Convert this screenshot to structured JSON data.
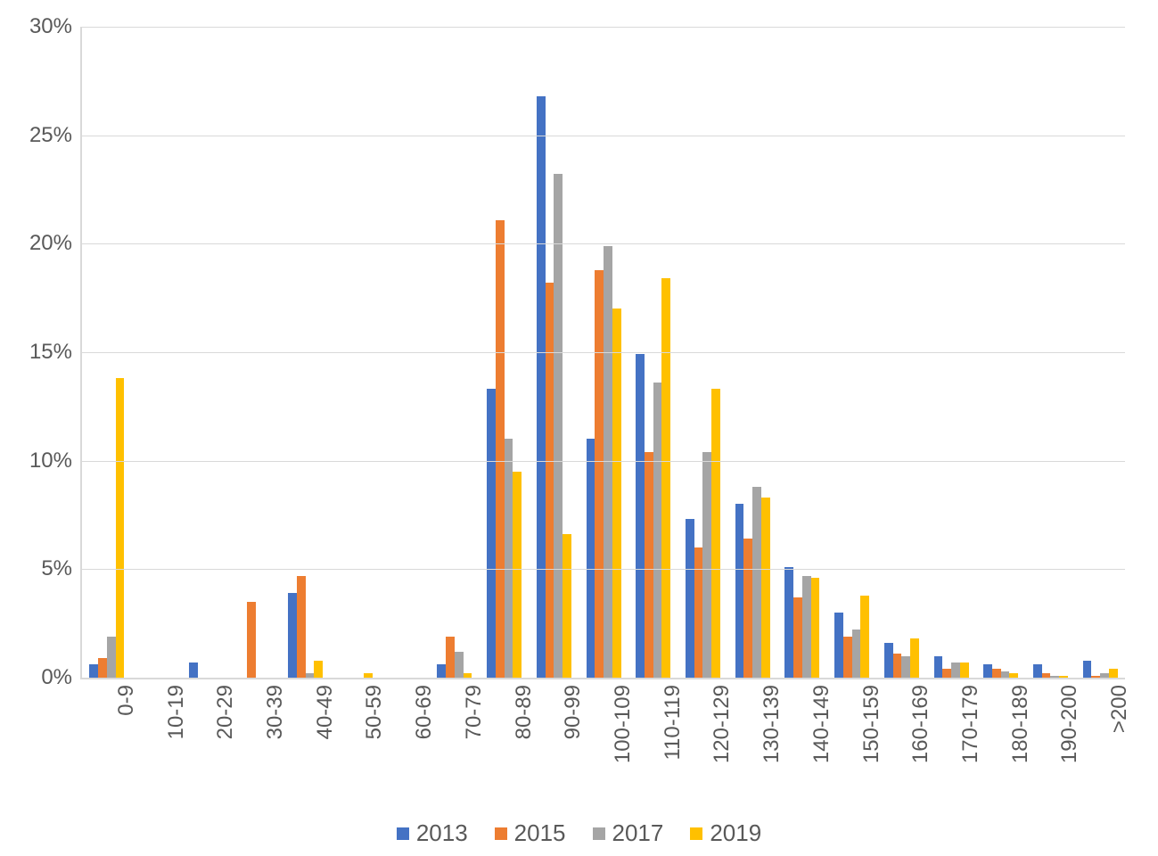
{
  "chart": {
    "type": "bar",
    "categories": [
      "0-9",
      "10-19",
      "20-29",
      "30-39",
      "40-49",
      "50-59",
      "60-69",
      "70-79",
      "80-89",
      "90-99",
      "100-109",
      "110-119",
      "120-129",
      "130-139",
      "140-149",
      "150-159",
      "160-169",
      "170-179",
      "180-189",
      "190-200",
      ">200"
    ],
    "series": [
      {
        "name": "2013",
        "color": "#4472c4",
        "values": [
          0.6,
          0,
          0.7,
          0,
          3.9,
          0,
          0,
          0.6,
          13.3,
          26.8,
          11.0,
          14.9,
          7.3,
          8.0,
          5.1,
          3.0,
          1.6,
          1.0,
          0.6,
          0.6,
          0.8
        ]
      },
      {
        "name": "2015",
        "color": "#ed7d31",
        "values": [
          0.9,
          0,
          0,
          3.5,
          4.7,
          0,
          0,
          1.9,
          21.1,
          18.2,
          18.8,
          10.4,
          6.0,
          6.4,
          3.7,
          1.9,
          1.1,
          0.4,
          0.4,
          0.2,
          0.1
        ]
      },
      {
        "name": "2017",
        "color": "#a5a5a5",
        "values": [
          1.9,
          0,
          0,
          0,
          0.2,
          0,
          0,
          1.2,
          11.0,
          23.2,
          19.9,
          13.6,
          10.4,
          8.8,
          4.7,
          2.2,
          1.0,
          0.7,
          0.3,
          0.1,
          0.2
        ]
      },
      {
        "name": "2019",
        "color": "#ffc000",
        "values": [
          13.8,
          0,
          0,
          0,
          0.8,
          0.2,
          0,
          0.2,
          9.5,
          6.6,
          17.0,
          18.4,
          13.3,
          8.3,
          4.6,
          3.8,
          1.8,
          0.7,
          0.2,
          0.1,
          0.4
        ]
      }
    ],
    "ylim": [
      0,
      30
    ],
    "ytick_step": 5,
    "ytick_suffix": "%",
    "background_color": "#ffffff",
    "grid_color": "#d9d9d9",
    "text_color": "#595959",
    "axis_fontsize": 24,
    "legend_fontsize": 26,
    "bar_group_width_ratio": 0.7
  }
}
